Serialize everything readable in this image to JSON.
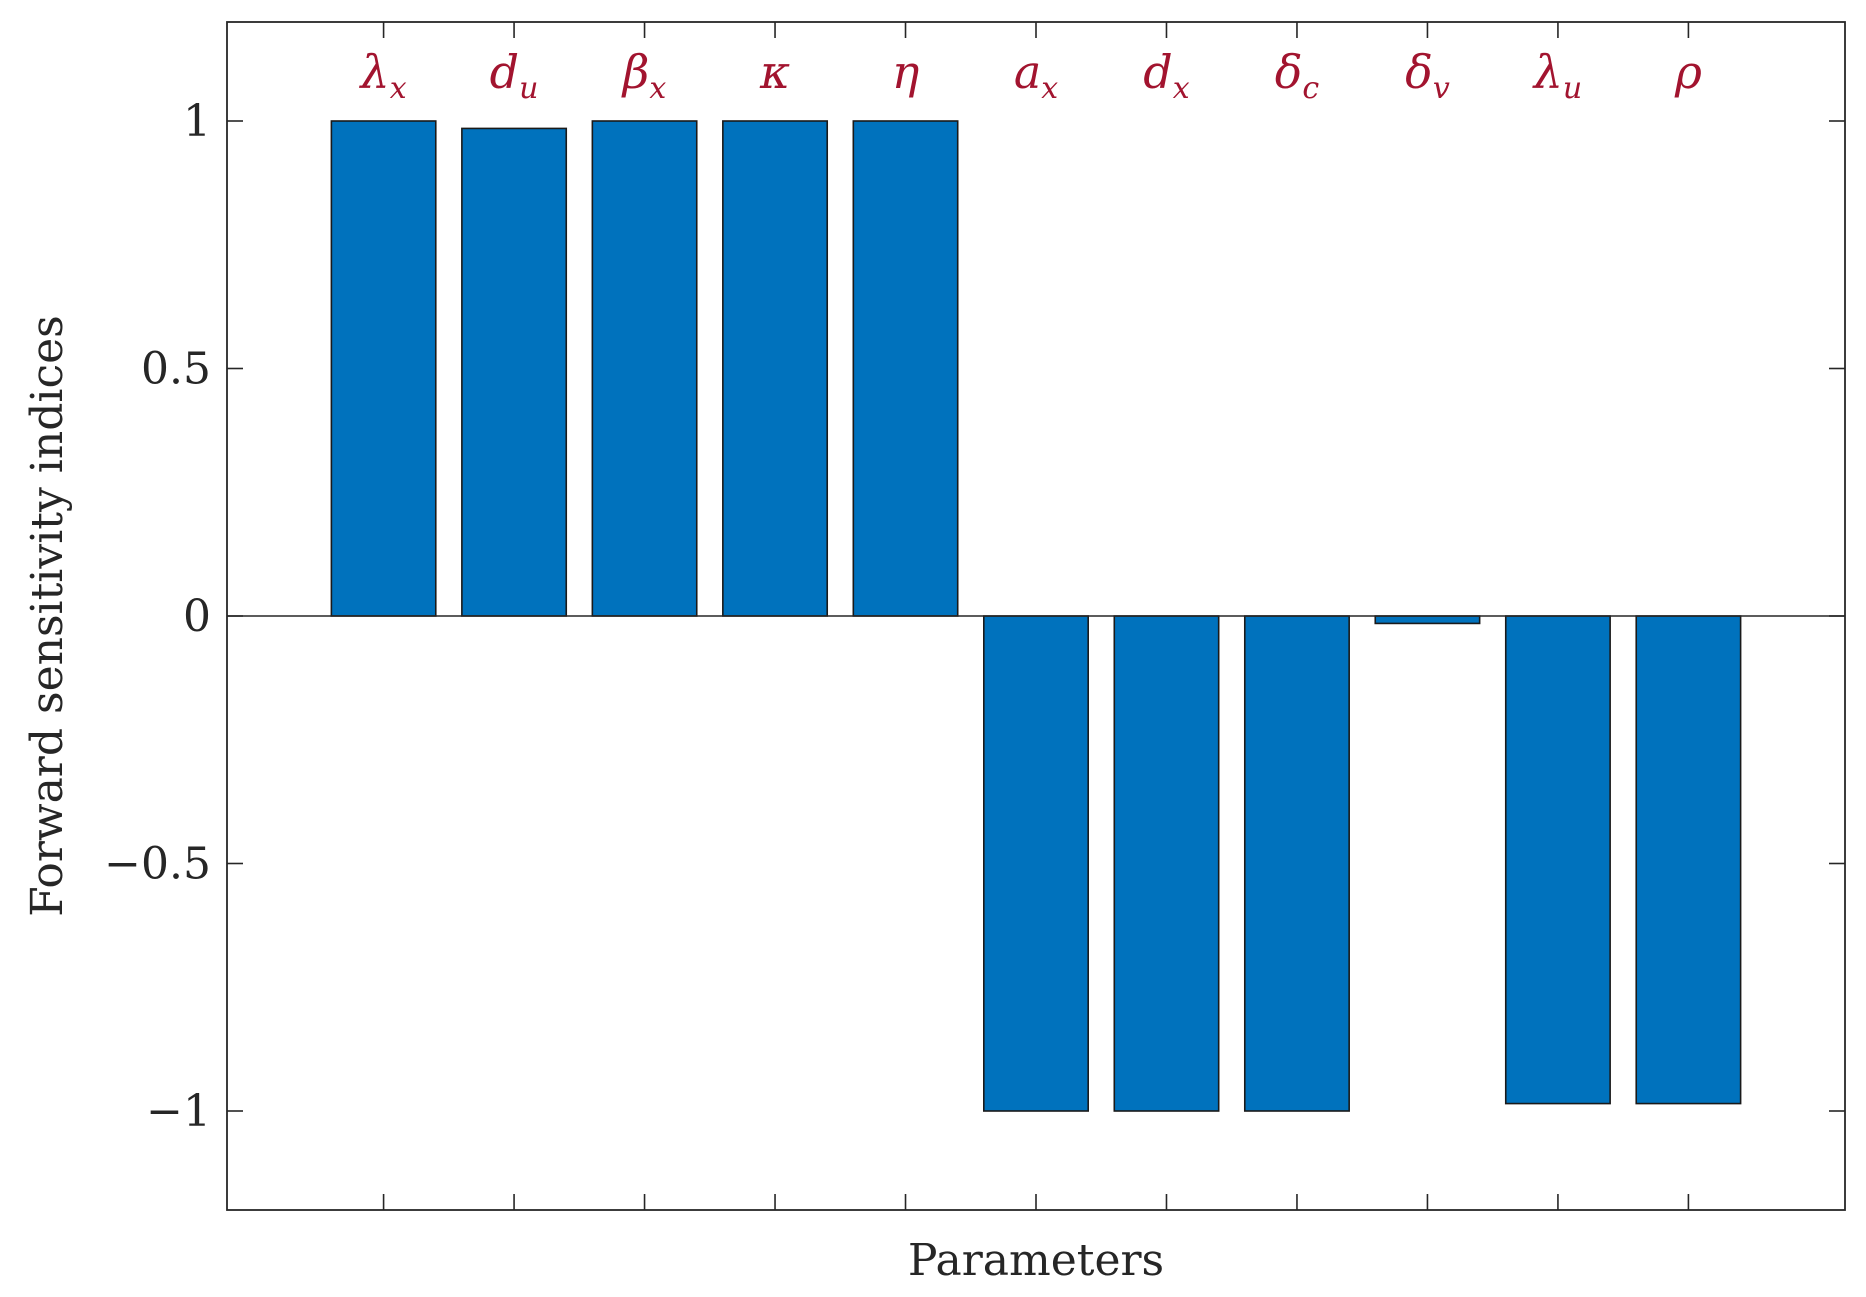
{
  "chart_data": {
    "type": "bar",
    "title": "",
    "xlabel": "Parameters",
    "ylabel": "Forward sensitivity indices",
    "categories": [
      {
        "symbol": "λ",
        "subscript": "x"
      },
      {
        "symbol": "d",
        "subscript": "u"
      },
      {
        "symbol": "β",
        "subscript": "x"
      },
      {
        "symbol": "κ",
        "subscript": ""
      },
      {
        "symbol": "η",
        "subscript": ""
      },
      {
        "symbol": "a",
        "subscript": "x"
      },
      {
        "symbol": "d",
        "subscript": "x"
      },
      {
        "symbol": "δ",
        "subscript": "c"
      },
      {
        "symbol": "δ",
        "subscript": "v"
      },
      {
        "symbol": "λ",
        "subscript": "u"
      },
      {
        "symbol": "ρ",
        "subscript": ""
      }
    ],
    "values": [
      1.0,
      0.985,
      1.0,
      1.0,
      1.0,
      -1.0,
      -1.0,
      -1.0,
      -0.015,
      -0.985,
      -0.985
    ],
    "ylim": [
      -1.2,
      1.2
    ],
    "yticks": [
      1,
      0.5,
      0,
      -0.5,
      -1
    ],
    "ytick_labels": [
      "1",
      "0.5",
      "0",
      "−0.5",
      "−1"
    ],
    "grid": false,
    "legend": "none",
    "colors": {
      "bar_fill": "#0072bd",
      "bar_edge": "#1a1a1a",
      "label_color": "#a2142f",
      "axis_color": "#262626"
    }
  }
}
